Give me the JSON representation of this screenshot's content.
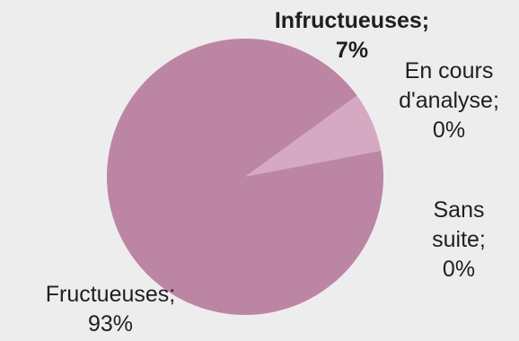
{
  "chart_data": {
    "type": "pie",
    "title": "",
    "categories": [
      "Infructueuses",
      "En cours d'analyse",
      "Sans suite",
      "Fructueuses"
    ],
    "values": [
      7,
      0,
      0,
      93
    ],
    "unit": "%",
    "colors": [
      "#d6a9c3",
      "#e2e2e2",
      "#c8a0b6",
      "#bd85a4"
    ],
    "legend": "none",
    "labels": [
      {
        "lines": [
          "Infructueuses;",
          "7%"
        ],
        "bold": true
      },
      {
        "lines": [
          "En cours",
          "d'analyse;",
          "0%"
        ],
        "bold": false
      },
      {
        "lines": [
          "Sans",
          "suite;",
          "0%"
        ],
        "bold": false
      },
      {
        "lines": [
          "Fructueuses;",
          "93%"
        ],
        "bold": false
      }
    ]
  }
}
